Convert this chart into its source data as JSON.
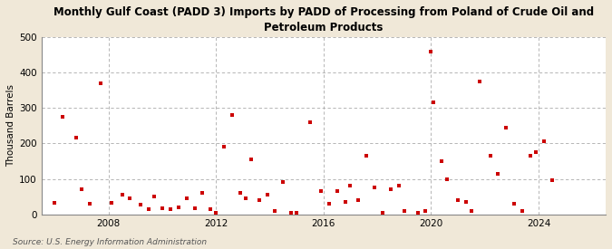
{
  "title": "Monthly Gulf Coast (PADD 3) Imports by PADD of Processing from Poland of Crude Oil and\nPetroleum Products",
  "ylabel": "Thousand Barrels",
  "source": "Source: U.S. Energy Information Administration",
  "fig_background_color": "#f0e8d8",
  "plot_background_color": "#ffffff",
  "dot_color": "#cc0000",
  "ylim": [
    0,
    500
  ],
  "yticks": [
    0,
    100,
    200,
    300,
    400,
    500
  ],
  "xlim": [
    2005.5,
    2026.5
  ],
  "xticks": [
    2008,
    2012,
    2016,
    2020,
    2024
  ],
  "grid_color": "#aaaaaa",
  "data_points": [
    [
      2006.0,
      32
    ],
    [
      2006.3,
      275
    ],
    [
      2006.8,
      215
    ],
    [
      2007.0,
      70
    ],
    [
      2007.3,
      30
    ],
    [
      2007.7,
      370
    ],
    [
      2008.1,
      32
    ],
    [
      2008.5,
      55
    ],
    [
      2008.8,
      45
    ],
    [
      2009.2,
      28
    ],
    [
      2009.5,
      15
    ],
    [
      2009.7,
      50
    ],
    [
      2010.0,
      18
    ],
    [
      2010.3,
      15
    ],
    [
      2010.6,
      20
    ],
    [
      2010.9,
      45
    ],
    [
      2011.2,
      18
    ],
    [
      2011.5,
      60
    ],
    [
      2011.8,
      15
    ],
    [
      2012.0,
      5
    ],
    [
      2012.3,
      190
    ],
    [
      2012.6,
      280
    ],
    [
      2012.9,
      60
    ],
    [
      2013.1,
      45
    ],
    [
      2013.3,
      155
    ],
    [
      2013.6,
      40
    ],
    [
      2013.9,
      55
    ],
    [
      2014.2,
      10
    ],
    [
      2014.5,
      90
    ],
    [
      2014.8,
      5
    ],
    [
      2015.0,
      5
    ],
    [
      2015.5,
      260
    ],
    [
      2015.9,
      65
    ],
    [
      2016.2,
      30
    ],
    [
      2016.5,
      65
    ],
    [
      2016.8,
      35
    ],
    [
      2017.0,
      80
    ],
    [
      2017.3,
      40
    ],
    [
      2017.6,
      165
    ],
    [
      2017.9,
      75
    ],
    [
      2018.2,
      5
    ],
    [
      2018.5,
      70
    ],
    [
      2018.8,
      80
    ],
    [
      2019.0,
      10
    ],
    [
      2019.5,
      5
    ],
    [
      2019.8,
      10
    ],
    [
      2020.0,
      460
    ],
    [
      2020.1,
      315
    ],
    [
      2020.4,
      150
    ],
    [
      2020.6,
      100
    ],
    [
      2021.0,
      40
    ],
    [
      2021.3,
      35
    ],
    [
      2021.5,
      10
    ],
    [
      2021.8,
      375
    ],
    [
      2022.2,
      165
    ],
    [
      2022.5,
      115
    ],
    [
      2022.8,
      245
    ],
    [
      2023.1,
      30
    ],
    [
      2023.4,
      10
    ],
    [
      2023.7,
      165
    ],
    [
      2023.9,
      175
    ],
    [
      2024.2,
      205
    ],
    [
      2024.5,
      95
    ]
  ]
}
